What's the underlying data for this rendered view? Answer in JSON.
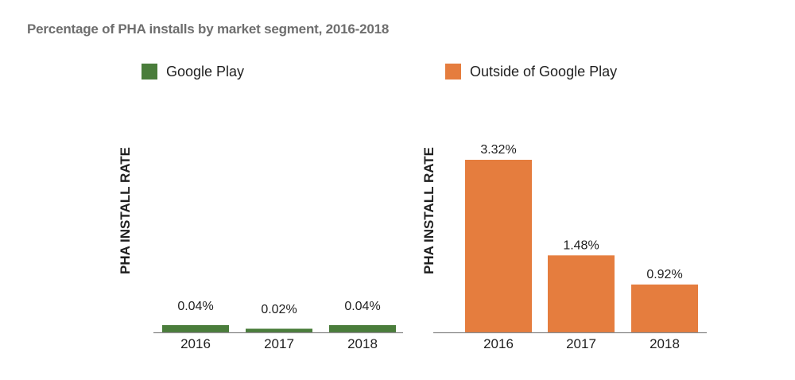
{
  "chart_data": [
    {
      "type": "bar",
      "title": "Percentage of PHA installs by market segment, 2016-2018",
      "series_name": "Google Play",
      "color": "#4a7d3b",
      "categories": [
        "2016",
        "2017",
        "2018"
      ],
      "values": [
        0.04,
        0.02,
        0.04
      ],
      "value_labels": [
        "0.04%",
        "0.02%",
        "0.04%"
      ],
      "xlabel": "",
      "ylabel": "PHA INSTALL RATE",
      "ylim": [
        0,
        3.5
      ],
      "grid": false,
      "legend": "top"
    },
    {
      "type": "bar",
      "title": "Percentage of PHA installs by market segment, 2016-2018",
      "series_name": "Outside of Google Play",
      "color": "#e57d3e",
      "categories": [
        "2016",
        "2017",
        "2018"
      ],
      "values": [
        3.32,
        1.48,
        0.92
      ],
      "value_labels": [
        "3.32%",
        "1.48%",
        "0.92%"
      ],
      "xlabel": "",
      "ylabel": "PHA INSTALL RATE",
      "ylim": [
        0,
        3.5
      ],
      "grid": false,
      "legend": "top"
    }
  ],
  "title": "Percentage of PHA installs by market segment, 2016-2018",
  "legend": [
    {
      "label": "Google Play",
      "color": "#4a7d3b"
    },
    {
      "label": "Outside of Google Play",
      "color": "#e57d3e"
    }
  ],
  "axis_color": "#8a8a8a"
}
